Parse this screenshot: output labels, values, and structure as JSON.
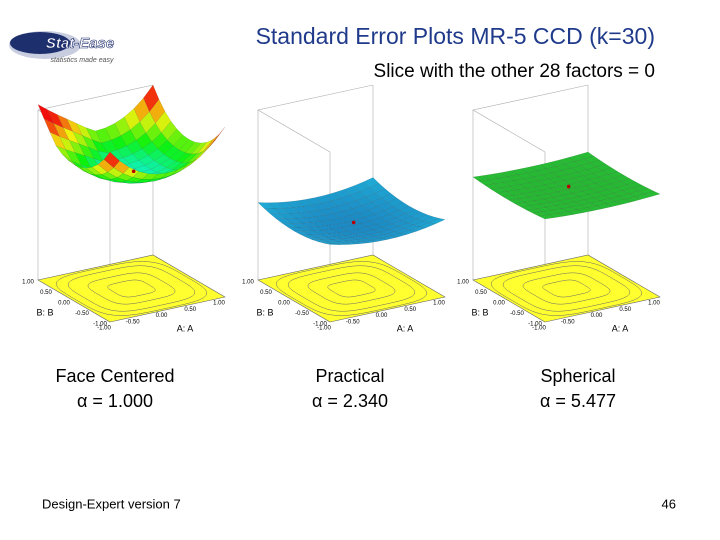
{
  "header": {
    "title": "Standard Error Plots MR-5 CCD (k=30)",
    "subtitle": "Slice with the other 28 factors = 0"
  },
  "logo": {
    "name": "Stat-Ease",
    "tagline": "statistics made easy"
  },
  "plots": [
    {
      "caption": "Face Centered",
      "alpha": "α = 1.000",
      "a_label": "A: A",
      "b_label": "B: B",
      "a_ticks": [
        "-1.00",
        "-0.50",
        "0.00",
        "0.50",
        "1.00"
      ],
      "b_ticks": [
        "-1.00",
        "-0.50",
        "0.00",
        "0.50",
        "1.00"
      ]
    },
    {
      "caption": "Practical",
      "alpha": "α = 2.340",
      "a_label": "A: A",
      "b_label": "B: B",
      "a_ticks": [
        "-1.00",
        "-0.50",
        "0.00",
        "0.50",
        "1.00"
      ],
      "b_ticks": [
        "-1.00",
        "-0.50",
        "0.00",
        "0.50",
        "1.00"
      ]
    },
    {
      "caption": "Spherical",
      "alpha": "α = 5.477",
      "a_label": "A: A",
      "b_label": "B: B",
      "a_ticks": [
        "-1.00",
        "-0.50",
        "0.00",
        "0.50",
        "1.00"
      ],
      "b_ticks": [
        "-1.00",
        "-0.50",
        "0.00",
        "0.50",
        "1.00"
      ]
    }
  ],
  "footer": {
    "left": "Design-Expert version 7",
    "page": "46"
  }
}
